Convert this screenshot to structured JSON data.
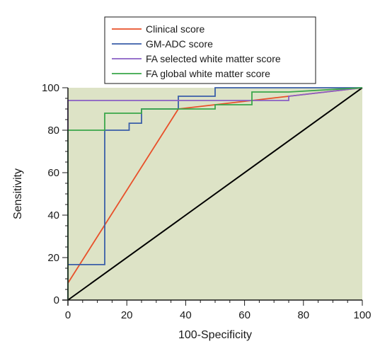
{
  "chart_data": {
    "type": "line",
    "xlabel": "100-Specificity",
    "ylabel": "Sensitivity",
    "xlim": [
      0,
      100
    ],
    "ylim": [
      0,
      100
    ],
    "x_ticks": [
      "0",
      "20",
      "40",
      "60",
      "80",
      "100"
    ],
    "y_ticks": [
      "0",
      "20",
      "40",
      "60",
      "80",
      "100"
    ],
    "plot_background": "#dde3c6",
    "grid": false,
    "legend_position": "top-center",
    "reference_line": {
      "color": "#000000",
      "points": [
        [
          0,
          0
        ],
        [
          100,
          100
        ]
      ]
    },
    "series": [
      {
        "name": "Clinical score",
        "color": "#e8502a",
        "points": [
          [
            0,
            8
          ],
          [
            37.5,
            90
          ],
          [
            100,
            100
          ]
        ]
      },
      {
        "name": "GM-ADC score",
        "color": "#3a5ea8",
        "points": [
          [
            0,
            0
          ],
          [
            0,
            16.7
          ],
          [
            12.5,
            16.7
          ],
          [
            12.5,
            80
          ],
          [
            20.8,
            80
          ],
          [
            20.8,
            83.3
          ],
          [
            25,
            83.3
          ],
          [
            25,
            90
          ],
          [
            37.5,
            90
          ],
          [
            37.5,
            96
          ],
          [
            50,
            96
          ],
          [
            50,
            100
          ],
          [
            75,
            100
          ],
          [
            75,
            100
          ],
          [
            100,
            100
          ]
        ]
      },
      {
        "name": "FA selected white matter score",
        "color": "#8a5fc4",
        "points": [
          [
            0,
            0
          ],
          [
            0,
            94
          ],
          [
            75,
            94
          ],
          [
            75,
            96
          ],
          [
            100,
            100
          ]
        ]
      },
      {
        "name": "FA global white matter score",
        "color": "#3aa64a",
        "points": [
          [
            0,
            0
          ],
          [
            0,
            80
          ],
          [
            12.5,
            80
          ],
          [
            12.5,
            88
          ],
          [
            25,
            88
          ],
          [
            25,
            90
          ],
          [
            50,
            90
          ],
          [
            50,
            92
          ],
          [
            62.5,
            92
          ],
          [
            62.5,
            98
          ],
          [
            75,
            98
          ],
          [
            100,
            100
          ]
        ]
      }
    ]
  }
}
